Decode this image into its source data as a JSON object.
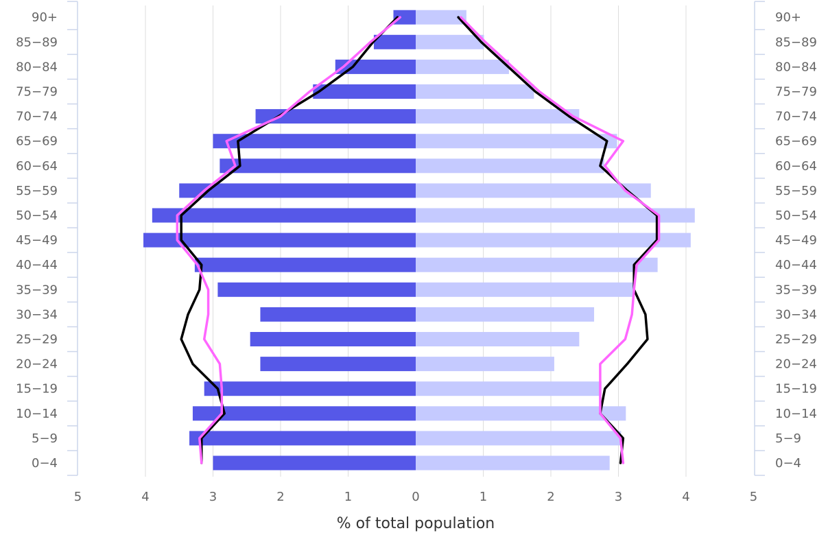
{
  "chart_data": {
    "type": "bar",
    "orientation": "horizontal-population-pyramid",
    "categories": [
      "0-4",
      "5-9",
      "10-14",
      "15-19",
      "20-24",
      "25-29",
      "30-34",
      "35-39",
      "40-44",
      "45-49",
      "50-54",
      "55-59",
      "60-64",
      "65-69",
      "70-74",
      "75-79",
      "80-84",
      "85-89",
      "90+"
    ],
    "series": [
      {
        "side": "left",
        "color": "#5658e8",
        "values": [
          3.0,
          3.35,
          3.3,
          3.13,
          2.3,
          2.45,
          2.3,
          2.93,
          3.27,
          4.03,
          3.9,
          3.5,
          2.9,
          3.0,
          2.37,
          1.52,
          1.19,
          0.62,
          0.33
        ]
      },
      {
        "side": "right",
        "color": "#c5caff",
        "values": [
          2.87,
          3.04,
          3.11,
          2.75,
          2.05,
          2.42,
          2.64,
          3.22,
          3.58,
          4.07,
          4.13,
          3.48,
          2.79,
          2.98,
          2.42,
          1.75,
          1.38,
          1.01,
          0.75
        ]
      }
    ],
    "overlays": [
      {
        "side": "left",
        "color": "#000000",
        "values": [
          3.17,
          3.17,
          2.83,
          2.93,
          3.3,
          3.47,
          3.37,
          3.2,
          3.17,
          3.47,
          3.47,
          3.07,
          2.6,
          2.63,
          2.03,
          1.43,
          0.93,
          0.63,
          0.27
        ]
      },
      {
        "side": "left",
        "color": "#ff66ff",
        "values": [
          3.17,
          3.2,
          2.87,
          2.87,
          2.9,
          3.13,
          3.07,
          3.07,
          3.23,
          3.53,
          3.53,
          3.13,
          2.67,
          2.8,
          2.0,
          1.57,
          1.07,
          0.67,
          0.23
        ]
      },
      {
        "side": "right",
        "color": "#000000",
        "values": [
          3.03,
          3.07,
          2.73,
          2.8,
          3.13,
          3.43,
          3.4,
          3.23,
          3.23,
          3.57,
          3.57,
          3.13,
          2.73,
          2.83,
          2.27,
          1.77,
          1.37,
          0.97,
          0.63
        ]
      },
      {
        "side": "right",
        "color": "#ff66ff",
        "values": [
          3.07,
          3.03,
          2.73,
          2.73,
          2.73,
          3.1,
          3.2,
          3.23,
          3.27,
          3.6,
          3.6,
          3.1,
          2.8,
          3.07,
          2.33,
          1.83,
          1.43,
          1.03,
          0.67
        ]
      }
    ],
    "x_ticks": [
      "5",
      "4",
      "3",
      "2",
      "1",
      "0",
      "1",
      "2",
      "3",
      "4",
      "5"
    ],
    "xlim": [
      -5,
      5
    ],
    "xlabel": "% of total population",
    "title": "",
    "grid": "vertical",
    "legend": "none"
  }
}
